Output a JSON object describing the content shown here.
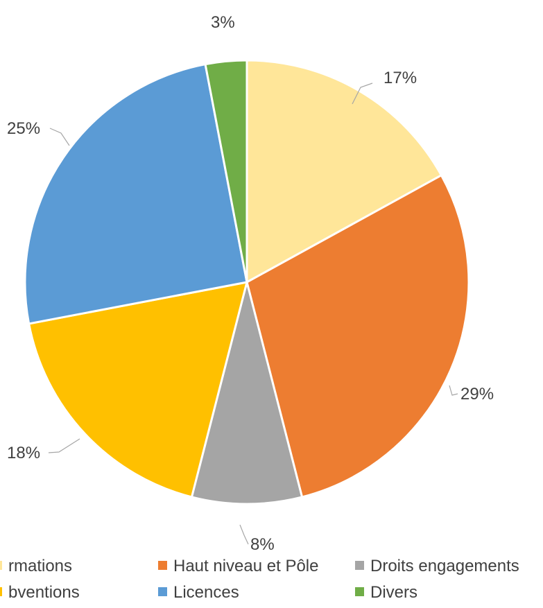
{
  "chart_data": {
    "type": "pie",
    "title": "",
    "slices": [
      {
        "name": "Affiliations",
        "value": 17,
        "label": "17%",
        "color": "#FFE699"
      },
      {
        "name": "Haut niveau et Pôle",
        "value": 29,
        "label": "29%",
        "color": "#ED7D31"
      },
      {
        "name": "Droits engagements",
        "value": 8,
        "label": "8%",
        "color": "#A5A5A5"
      },
      {
        "name": "Subventions",
        "value": 18,
        "label": "18%",
        "color": "#FFC000"
      },
      {
        "name": "Licences",
        "value": 25,
        "label": "25%",
        "color": "#5B9BD5"
      },
      {
        "name": "Divers",
        "value": 3,
        "label": "3%",
        "color": "#70AD47"
      }
    ],
    "legend": {
      "placement": "bottom",
      "entries": [
        {
          "text": "rmations",
          "color": "#FFE699"
        },
        {
          "text": "Haut niveau et Pôle",
          "color": "#ED7D31"
        },
        {
          "text": "Droits engagements",
          "color": "#A5A5A5"
        },
        {
          "text": "bventions",
          "color": "#FFC000"
        },
        {
          "text": "Licences",
          "color": "#5B9BD5"
        },
        {
          "text": "Divers",
          "color": "#70AD47"
        }
      ]
    }
  }
}
